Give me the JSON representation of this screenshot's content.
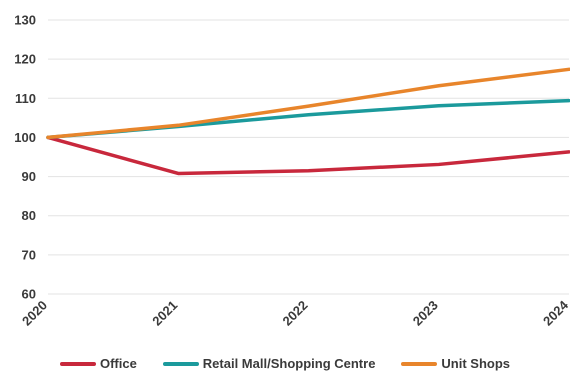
{
  "chart_data": {
    "type": "line",
    "x": [
      "2020",
      "2021",
      "2022",
      "2023",
      "2024"
    ],
    "ylim": [
      60,
      130
    ],
    "yticks": [
      60,
      70,
      80,
      90,
      100,
      110,
      120,
      130
    ],
    "grid": true,
    "legend_position": "bottom",
    "title": "",
    "xlabel": "",
    "ylabel": "",
    "series": [
      {
        "name": "Office",
        "color": "#c8283c",
        "values": [
          100,
          90.8,
          91.5,
          93.1,
          96.3
        ]
      },
      {
        "name": "Retail Mall/Shopping Centre",
        "color": "#1b9a9c",
        "values": [
          100,
          102.8,
          105.8,
          108.1,
          109.4
        ]
      },
      {
        "name": "Unit Shops",
        "color": "#e8852b",
        "values": [
          100,
          103.1,
          108.0,
          113.2,
          117.4
        ]
      }
    ]
  }
}
